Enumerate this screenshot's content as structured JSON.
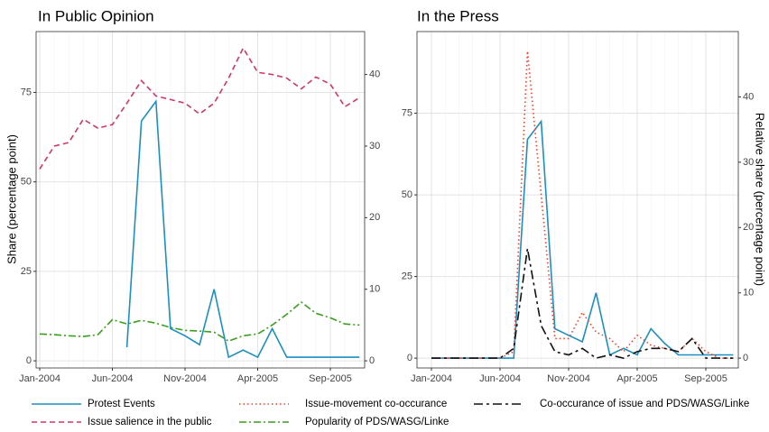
{
  "chart_data": [
    {
      "type": "line",
      "title": "In Public Opinion",
      "ylabel": "Share (percentage point)",
      "categories": [
        "Jan-2004",
        null,
        null,
        null,
        null,
        "Jun-2004",
        null,
        null,
        null,
        null,
        "Nov-2004",
        null,
        null,
        null,
        null,
        "Apr-2005",
        null,
        null,
        null,
        null,
        "Sep-2005",
        null,
        null
      ],
      "ylim": [
        -2,
        92
      ],
      "yticks": [
        0,
        25,
        50,
        75
      ],
      "y2lim": [
        -1,
        46
      ],
      "y2ticks": [
        0,
        10,
        20,
        30,
        40
      ],
      "grid": true,
      "series": [
        {
          "name": "Protest Events",
          "color": "#1b8fc2",
          "style": "solid",
          "values": [
            null,
            null,
            null,
            null,
            null,
            null,
            3.8,
            67,
            72.5,
            9,
            7,
            4.5,
            20,
            1,
            3,
            1,
            9,
            1,
            1,
            1,
            1,
            1,
            1
          ]
        },
        {
          "name": "Issue salience in the public",
          "color": "#d6336c",
          "style": "dashed",
          "values": [
            53.6,
            60,
            61,
            67.5,
            65,
            66,
            72,
            78.3,
            74,
            73,
            72,
            69,
            72,
            79,
            87.4,
            80.6,
            80,
            79,
            76,
            79.3,
            77.3,
            71,
            73.5
          ]
        },
        {
          "name": "Popularity of PDS/WASG/Linke",
          "color": "#3a9e1e",
          "style": "dashdot",
          "values": [
            7.5,
            7.3,
            7,
            6.8,
            7.3,
            11.5,
            10.3,
            11.3,
            10.5,
            9.3,
            8.5,
            8.3,
            8,
            5.5,
            7,
            7.5,
            10,
            13,
            16.4,
            13.3,
            12,
            10.3,
            10
          ]
        }
      ]
    },
    {
      "type": "line",
      "title": "In the Press",
      "y2label": "Relative share (percentage point)",
      "categories": [
        "Jan-2004",
        null,
        null,
        null,
        null,
        "Jun-2004",
        null,
        null,
        null,
        null,
        "Nov-2004",
        null,
        null,
        null,
        null,
        "Apr-2005",
        null,
        null,
        null,
        null,
        "Sep-2005",
        null,
        null
      ],
      "ylim": [
        -3,
        100
      ],
      "yticks": [
        0,
        25,
        50,
        75
      ],
      "y2lim": [
        -1.5,
        50
      ],
      "y2ticks": [
        0,
        10,
        20,
        30,
        40
      ],
      "grid": true,
      "series": [
        {
          "name": "Protest Events",
          "color": "#1b8fc2",
          "style": "solid",
          "values": [
            0,
            0,
            0,
            0,
            0,
            0,
            0,
            67,
            72.5,
            9,
            7,
            5,
            20,
            1,
            3,
            1,
            9,
            4.5,
            1,
            1,
            1,
            1,
            1
          ]
        },
        {
          "name": "Issue-movement co-occurance",
          "color": "#ff3b1f",
          "style": "dotted",
          "axis": "y2",
          "values": [
            0,
            0,
            0,
            0,
            0,
            0,
            1,
            47,
            25,
            3,
            3,
            7,
            4,
            3,
            1,
            3.5,
            2,
            1.5,
            1,
            3,
            1,
            0,
            0
          ]
        },
        {
          "name": "Co-occurance of issue and PDS/WASG/Linke",
          "color": "#111111",
          "style": "longdash",
          "axis": "y2",
          "values": [
            0,
            0,
            0,
            0,
            0,
            0,
            1.5,
            16.8,
            5,
            1,
            0.5,
            1.5,
            0,
            0.5,
            0,
            1,
            1.5,
            1.5,
            1,
            3,
            0,
            0,
            0
          ]
        }
      ]
    }
  ]
}
